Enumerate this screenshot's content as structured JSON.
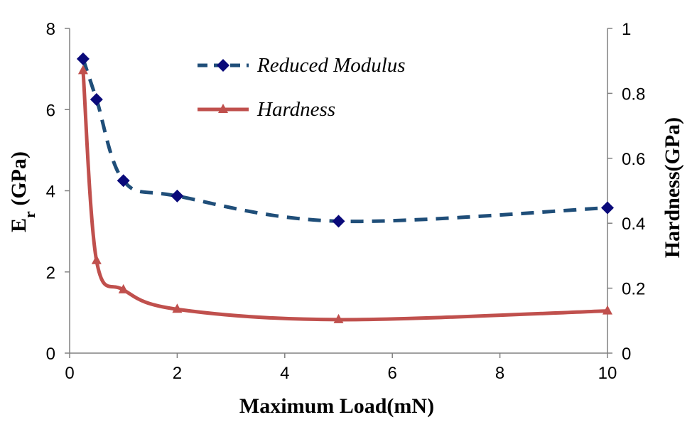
{
  "chart_data": {
    "type": "line",
    "xlabel": "Maximum Load(mN)",
    "ylabel": {
      "base": "E",
      "sub": "r",
      "rest": " (GPa)"
    },
    "y2label": "Hardness(GPa)",
    "xlim": [
      0,
      10
    ],
    "ylim": [
      0,
      8
    ],
    "y2lim": [
      0,
      1
    ],
    "x_ticks": [
      "0",
      "2",
      "4",
      "6",
      "8",
      "10"
    ],
    "y_ticks": [
      "0",
      "2",
      "4",
      "6",
      "8"
    ],
    "y2_ticks": [
      "0",
      "0.2",
      "0.4",
      "0.6",
      "0.8",
      "1"
    ],
    "grid": false,
    "legend_position": "top-center",
    "series": [
      {
        "name": "Reduced Modulus",
        "axis": "left",
        "style": "dashed",
        "marker": "diamond",
        "color": "#1F4E79",
        "marker_color": "#0A0A7A",
        "x": [
          0.25,
          0.5,
          1,
          2,
          5,
          10
        ],
        "values": [
          7.25,
          6.25,
          4.25,
          3.87,
          3.25,
          3.58
        ]
      },
      {
        "name": "Hardness",
        "axis": "right",
        "style": "solid",
        "marker": "triangle",
        "color": "#C0504D",
        "marker_color": "#C0504D",
        "x": [
          0.25,
          0.5,
          1,
          2,
          5,
          10
        ],
        "values": [
          0.87,
          0.285,
          0.195,
          0.135,
          0.103,
          0.13
        ]
      }
    ]
  }
}
